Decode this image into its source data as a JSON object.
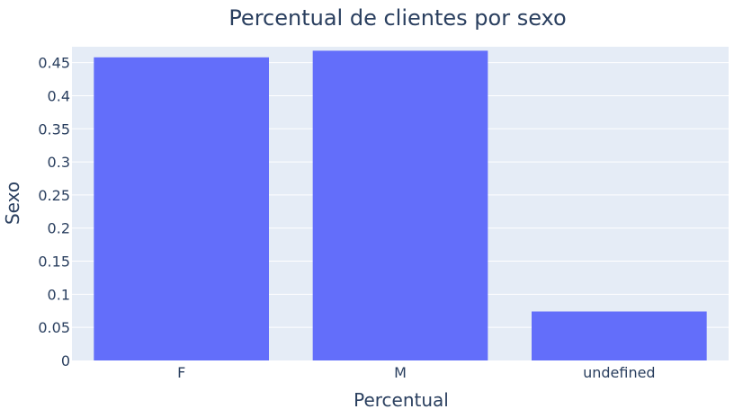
{
  "chart_data": {
    "type": "bar",
    "title": "Percentual de clientes por sexo",
    "xlabel": "Percentual",
    "ylabel": "Sexo",
    "categories": [
      "F",
      "M",
      "undefined"
    ],
    "values": [
      0.458,
      0.468,
      0.074
    ],
    "ylim": [
      0,
      0.474
    ],
    "yticks": [
      0,
      0.05,
      0.1,
      0.15,
      0.2,
      0.25,
      0.3,
      0.35,
      0.4,
      0.45
    ],
    "ytick_labels": [
      "0",
      "0.05",
      "0.1",
      "0.15",
      "0.2",
      "0.25",
      "0.3",
      "0.35",
      "0.4",
      "0.45"
    ],
    "grid": true,
    "bar_color": "#636efa",
    "plot_background": "#e5ecf6"
  }
}
